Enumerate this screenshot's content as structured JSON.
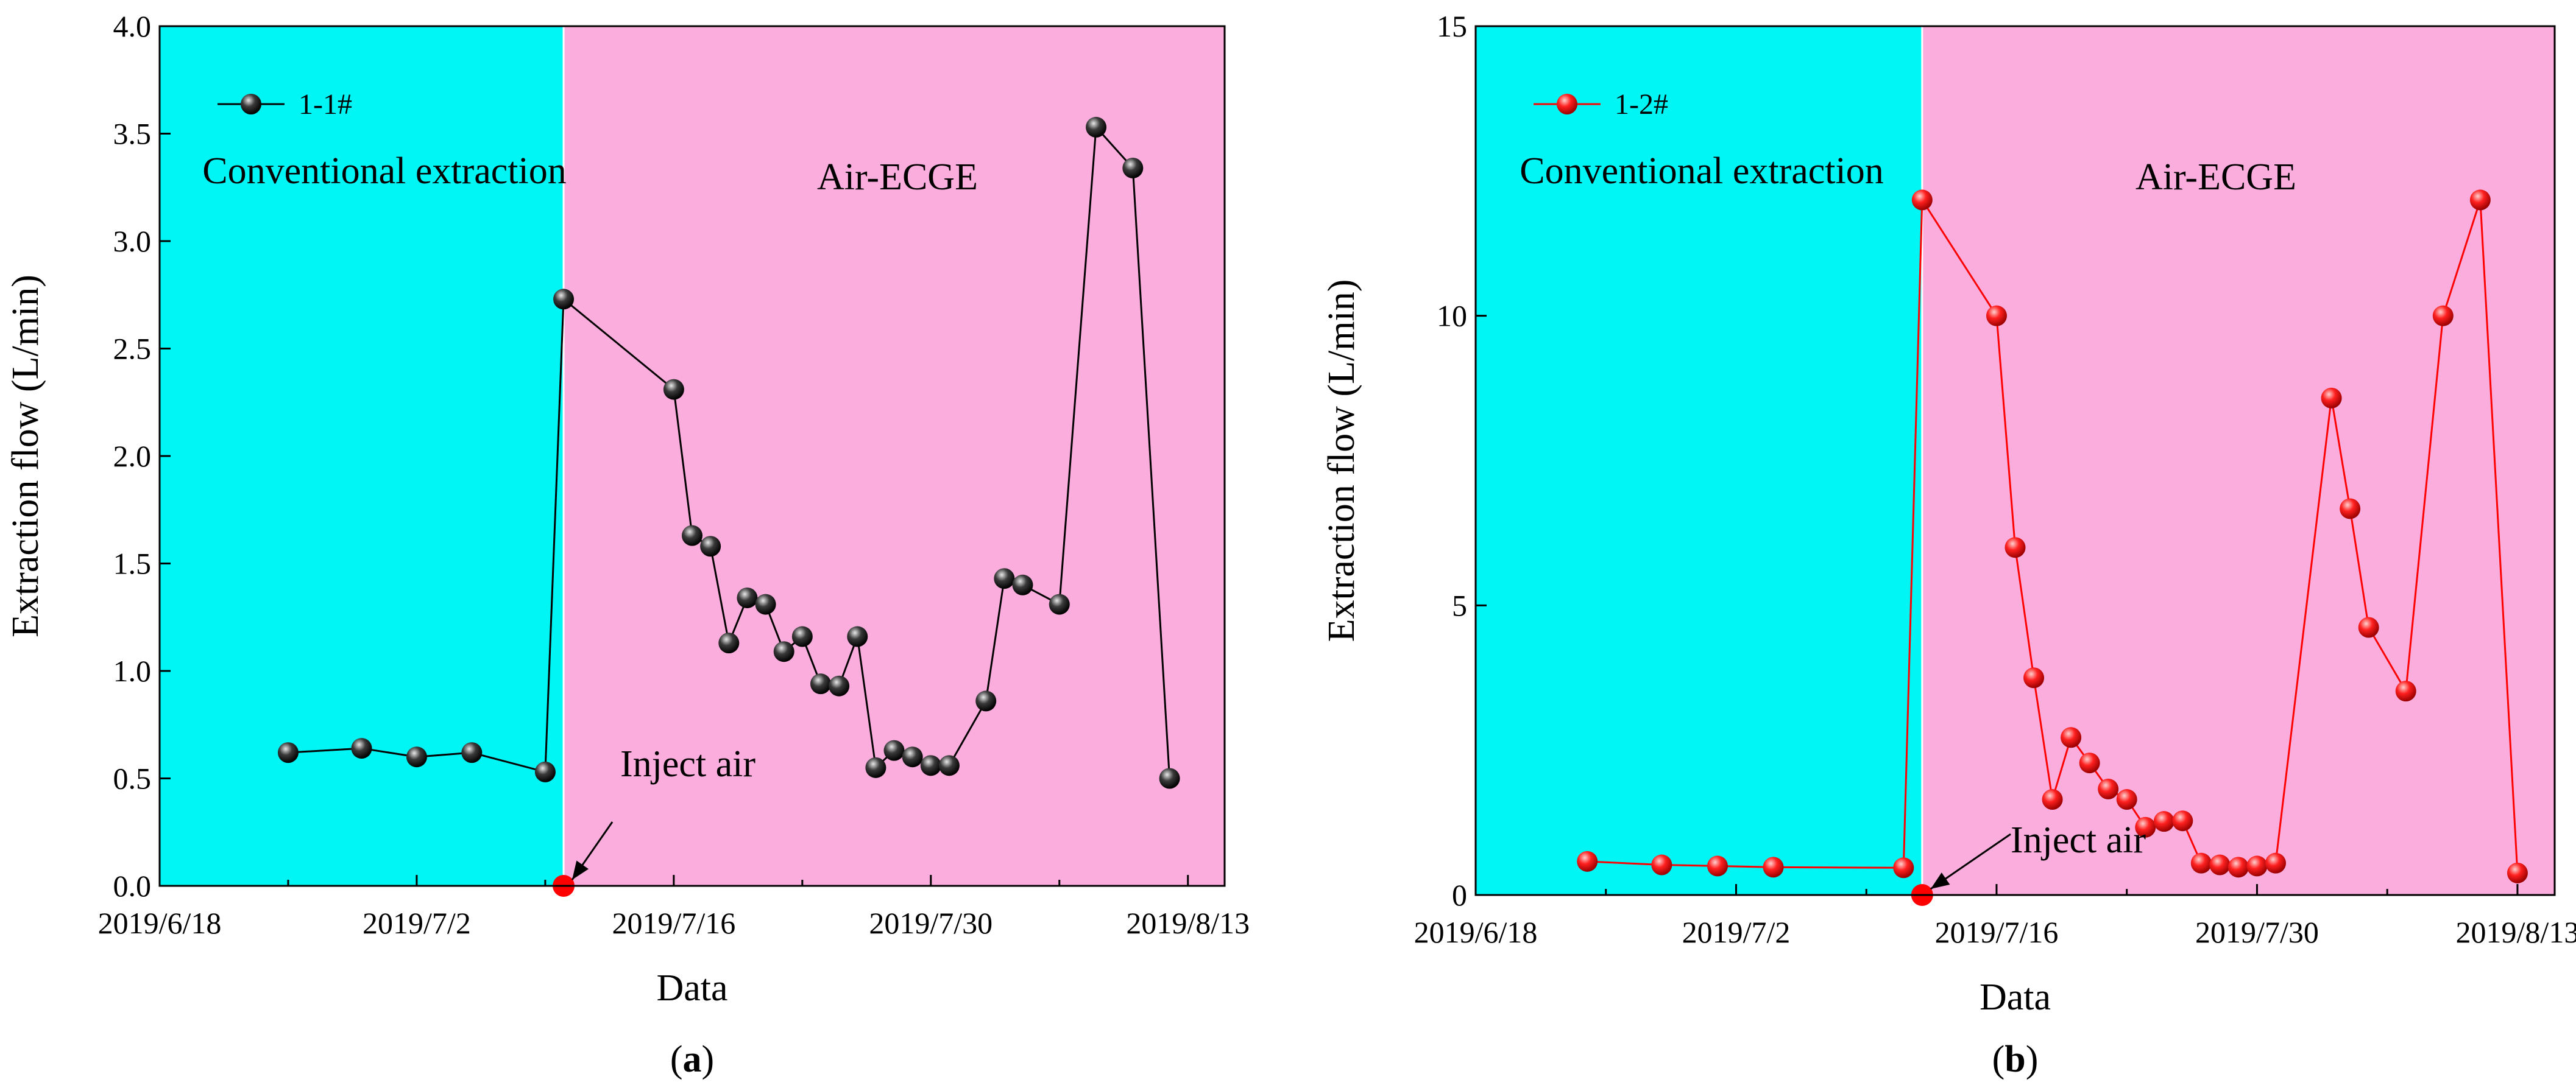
{
  "chart_data": [
    {
      "type": "line",
      "panel_label": "a",
      "xlabel": "Data",
      "ylabel": "Extraction flow (L/min)",
      "xlim": [
        "2019/6/18",
        "2019/8/15"
      ],
      "ylim": [
        0,
        4.0
      ],
      "x_ticks": [
        "2019/6/18",
        "2019/7/2",
        "2019/7/16",
        "2019/7/30",
        "2019/8/13"
      ],
      "y_ticks": [
        "0.0",
        "0.5",
        "1.0",
        "1.5",
        "2.0",
        "2.5",
        "3.0",
        "3.5",
        "4.0"
      ],
      "regions": [
        {
          "label": "Conventional extraction",
          "from": "2019/6/18",
          "to": "2019/7/10",
          "color": "#00f5f5"
        },
        {
          "label": "Air-ECGE",
          "from": "2019/7/10",
          "to": "2019/8/15",
          "color": "#fbaedd"
        }
      ],
      "series": [
        {
          "name": "1-1#",
          "color": "#000000",
          "points": [
            {
              "x": "2019/6/25",
              "y": 0.62
            },
            {
              "x": "2019/6/29",
              "y": 0.64
            },
            {
              "x": "2019/7/2",
              "y": 0.6
            },
            {
              "x": "2019/7/5",
              "y": 0.62
            },
            {
              "x": "2019/7/9",
              "y": 0.53
            },
            {
              "x": "2019/7/10",
              "y": 2.73
            },
            {
              "x": "2019/7/16",
              "y": 2.31
            },
            {
              "x": "2019/7/17",
              "y": 1.63
            },
            {
              "x": "2019/7/18",
              "y": 1.58
            },
            {
              "x": "2019/7/19",
              "y": 1.13
            },
            {
              "x": "2019/7/20",
              "y": 1.34
            },
            {
              "x": "2019/7/21",
              "y": 1.31
            },
            {
              "x": "2019/7/22",
              "y": 1.09
            },
            {
              "x": "2019/7/23",
              "y": 1.16
            },
            {
              "x": "2019/7/24",
              "y": 0.94
            },
            {
              "x": "2019/7/25",
              "y": 0.93
            },
            {
              "x": "2019/7/26",
              "y": 1.16
            },
            {
              "x": "2019/7/27",
              "y": 0.55
            },
            {
              "x": "2019/7/28",
              "y": 0.63
            },
            {
              "x": "2019/7/29",
              "y": 0.6
            },
            {
              "x": "2019/7/30",
              "y": 0.56
            },
            {
              "x": "2019/7/31",
              "y": 0.56
            },
            {
              "x": "2019/8/2",
              "y": 0.86
            },
            {
              "x": "2019/8/3",
              "y": 1.43
            },
            {
              "x": "2019/8/4",
              "y": 1.4
            },
            {
              "x": "2019/8/6",
              "y": 1.31
            },
            {
              "x": "2019/8/8",
              "y": 3.53
            },
            {
              "x": "2019/8/10",
              "y": 3.34
            },
            {
              "x": "2019/8/12",
              "y": 0.5
            }
          ]
        }
      ],
      "annotations": [
        {
          "text": "Inject air",
          "x": "2019/7/10",
          "y": 0
        }
      ]
    },
    {
      "type": "line",
      "panel_label": "b",
      "xlabel": "Data",
      "ylabel": "Extraction flow (L/min)",
      "xlim": [
        "2019/6/18",
        "2019/8/15"
      ],
      "ylim": [
        0,
        15
      ],
      "x_ticks": [
        "2019/6/18",
        "2019/7/2",
        "2019/7/16",
        "2019/7/30",
        "2019/8/13"
      ],
      "y_ticks": [
        "0",
        "5",
        "10",
        "15"
      ],
      "regions": [
        {
          "label": "Conventional extraction",
          "from": "2019/6/18",
          "to": "2019/7/12",
          "color": "#00f5f5"
        },
        {
          "label": "Air-ECGE",
          "from": "2019/7/12",
          "to": "2019/8/15",
          "color": "#fbaedd"
        }
      ],
      "series": [
        {
          "name": "1-2#",
          "color": "#ff0000",
          "points": [
            {
              "x": "2019/6/24",
              "y": 0.58
            },
            {
              "x": "2019/6/28",
              "y": 0.52
            },
            {
              "x": "2019/7/1",
              "y": 0.5
            },
            {
              "x": "2019/7/4",
              "y": 0.48
            },
            {
              "x": "2019/7/11",
              "y": 0.47
            },
            {
              "x": "2019/7/12",
              "y": 12.0
            },
            {
              "x": "2019/7/16",
              "y": 10.0
            },
            {
              "x": "2019/7/17",
              "y": 6.0
            },
            {
              "x": "2019/7/18",
              "y": 3.75
            },
            {
              "x": "2019/7/19",
              "y": 1.65
            },
            {
              "x": "2019/7/20",
              "y": 2.72
            },
            {
              "x": "2019/7/21",
              "y": 2.28
            },
            {
              "x": "2019/7/22",
              "y": 1.83
            },
            {
              "x": "2019/7/23",
              "y": 1.65
            },
            {
              "x": "2019/7/24",
              "y": 1.17
            },
            {
              "x": "2019/7/25",
              "y": 1.27
            },
            {
              "x": "2019/7/26",
              "y": 1.28
            },
            {
              "x": "2019/7/27",
              "y": 0.55
            },
            {
              "x": "2019/7/28",
              "y": 0.52
            },
            {
              "x": "2019/7/29",
              "y": 0.48
            },
            {
              "x": "2019/7/30",
              "y": 0.5
            },
            {
              "x": "2019/7/31",
              "y": 0.55
            },
            {
              "x": "2019/8/3",
              "y": 8.58
            },
            {
              "x": "2019/8/4",
              "y": 6.67
            },
            {
              "x": "2019/8/5",
              "y": 4.62
            },
            {
              "x": "2019/8/7",
              "y": 3.52
            },
            {
              "x": "2019/8/9",
              "y": 10.0
            },
            {
              "x": "2019/8/11",
              "y": 12.0
            },
            {
              "x": "2019/8/13",
              "y": 0.38
            }
          ]
        }
      ],
      "annotations": [
        {
          "text": "Inject air",
          "x": "2019/7/12",
          "y": 0
        }
      ]
    }
  ]
}
